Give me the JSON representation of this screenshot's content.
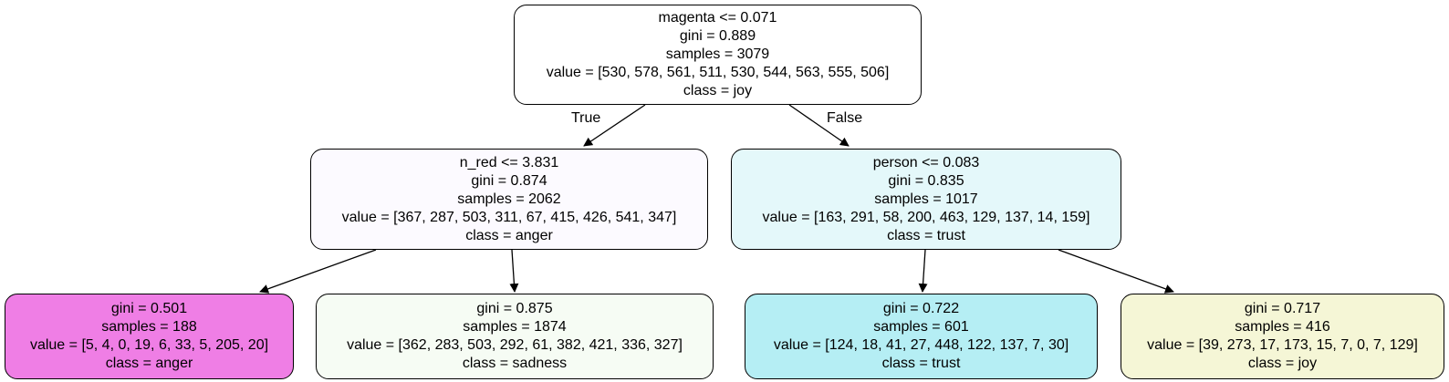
{
  "nodes": {
    "root": {
      "split": "magenta <= 0.071",
      "gini": "gini = 0.889",
      "samples": "samples = 3079",
      "value": "value = [530, 578, 561, 511, 530, 544, 563, 555, 506]",
      "class": "class = joy",
      "fill": "#ffffff"
    },
    "left": {
      "split": "n_red <= 3.831",
      "gini": "gini = 0.874",
      "samples": "samples = 2062",
      "value": "value = [367, 287, 503, 311, 67, 415, 426, 541, 347]",
      "class": "class = anger",
      "fill": "#fcfaff"
    },
    "right": {
      "split": "person <= 0.083",
      "gini": "gini = 0.835",
      "samples": "samples = 1017",
      "value": "value = [163, 291, 58, 200, 463, 129, 137, 14, 159]",
      "class": "class = trust",
      "fill": "#e4f8fa"
    },
    "leaf1": {
      "gini": "gini = 0.501",
      "samples": "samples = 188",
      "value": "value = [5, 4, 0, 19, 6, 33, 5, 205, 20]",
      "class": "class = anger",
      "fill": "#ef7ee5"
    },
    "leaf2": {
      "gini": "gini = 0.875",
      "samples": "samples = 1874",
      "value": "value = [362, 283, 503, 292, 61, 382, 421, 336, 327]",
      "class": "class = sadness",
      "fill": "#f6fcf4"
    },
    "leaf3": {
      "gini": "gini = 0.722",
      "samples": "samples = 601",
      "value": "value = [124, 18, 41, 27, 448, 122, 137, 7, 30]",
      "class": "class = trust",
      "fill": "#b5eef4"
    },
    "leaf4": {
      "gini": "gini = 0.717",
      "samples": "samples = 416",
      "value": "value = [39, 273, 17, 173, 15, 7, 0, 7, 129]",
      "class": "class = joy",
      "fill": "#f5f6d6"
    }
  },
  "edges": {
    "true_label": "True",
    "false_label": "False"
  }
}
